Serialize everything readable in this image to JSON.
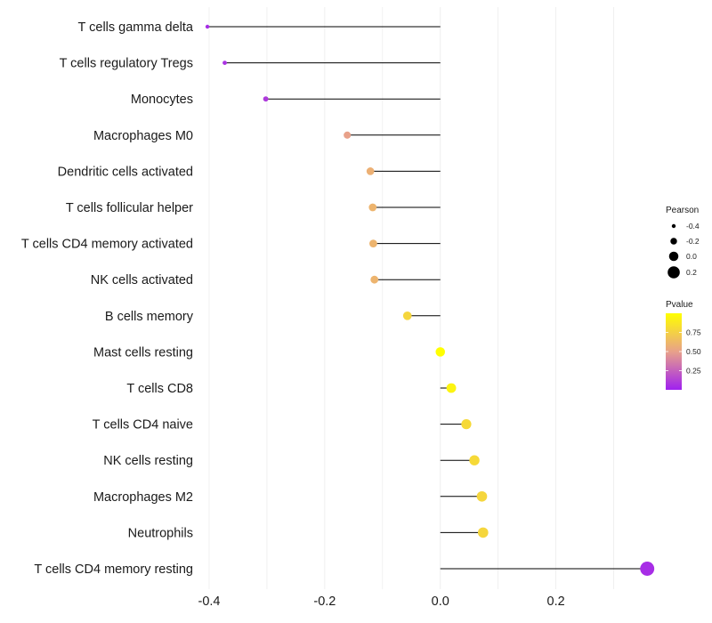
{
  "chart_data": {
    "type": "lollipop",
    "title": "",
    "xlabel": "",
    "ylabel": "",
    "xlim": [
      -0.42,
      0.37
    ],
    "x_ticks": [
      -0.4,
      -0.2,
      0.0,
      0.2
    ],
    "x_tick_labels": [
      "-0.4",
      "-0.2",
      "0.0",
      "0.2"
    ],
    "grid": true,
    "categories": [
      "T cells gamma delta",
      "T cells regulatory  Tregs",
      "Monocytes",
      "Macrophages M0",
      "Dendritic cells activated",
      "T cells follicular helper",
      "T cells CD4 memory activated",
      "NK cells activated",
      "B cells memory",
      "Mast cells resting",
      "T cells CD8",
      "T cells CD4 naive",
      "NK cells resting",
      "Macrophages M2",
      "Neutrophils",
      "T cells CD4 memory resting"
    ],
    "values": [
      -0.403,
      -0.373,
      -0.302,
      -0.161,
      -0.121,
      -0.117,
      -0.116,
      -0.114,
      -0.057,
      0.0,
      0.019,
      0.045,
      0.059,
      0.072,
      0.074,
      0.358
    ],
    "pvalues": [
      0.05,
      0.07,
      0.1,
      0.5,
      0.58,
      0.6,
      0.6,
      0.6,
      0.78,
      1.0,
      0.94,
      0.8,
      0.8,
      0.78,
      0.78,
      0.05
    ],
    "legend_size": {
      "title": "Pearson",
      "breaks": [
        -0.4,
        -0.2,
        0.0,
        0.2
      ],
      "labels": [
        "-0.4",
        "-0.2",
        "0.0",
        "0.2"
      ]
    },
    "legend_color": {
      "title": "Pvalue",
      "range": [
        0.0,
        1.0
      ],
      "breaks": [
        0.25,
        0.5,
        0.75
      ],
      "labels": [
        "0.25",
        "0.50",
        "0.75"
      ],
      "low_color": "#a020f0",
      "mid_color": "#e8a18a",
      "high_color": "#ffff00"
    },
    "legend_position": "right"
  }
}
